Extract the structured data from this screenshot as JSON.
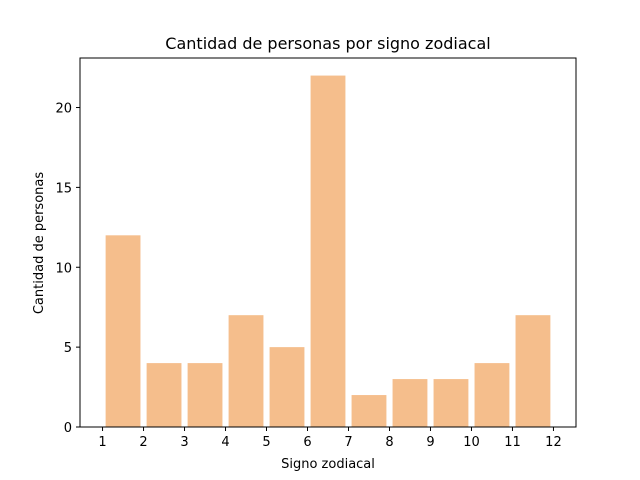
{
  "chart_data": {
    "type": "bar",
    "title": "Cantidad de personas por signo zodiacal",
    "xlabel": "Signo zodiacal",
    "ylabel": "Cantidad de personas",
    "bins": [
      {
        "start": 1,
        "end": 2,
        "value": 12
      },
      {
        "start": 2,
        "end": 3,
        "value": 4
      },
      {
        "start": 3,
        "end": 4,
        "value": 4
      },
      {
        "start": 4,
        "end": 5,
        "value": 7
      },
      {
        "start": 5,
        "end": 6,
        "value": 5
      },
      {
        "start": 6,
        "end": 7,
        "value": 22
      },
      {
        "start": 7,
        "end": 8,
        "value": 2
      },
      {
        "start": 8,
        "end": 9,
        "value": 3
      },
      {
        "start": 9,
        "end": 10,
        "value": 3
      },
      {
        "start": 10,
        "end": 11,
        "value": 4
      },
      {
        "start": 11,
        "end": 12,
        "value": 7
      }
    ],
    "xticks": [
      1,
      2,
      3,
      4,
      5,
      6,
      7,
      8,
      9,
      10,
      11,
      12
    ],
    "yticks": [
      0,
      5,
      10,
      15,
      20
    ],
    "xlim": [
      0.45,
      12.55
    ],
    "ylim": [
      0,
      23.1
    ],
    "grid": false,
    "bar_color": "#f5be8c"
  }
}
